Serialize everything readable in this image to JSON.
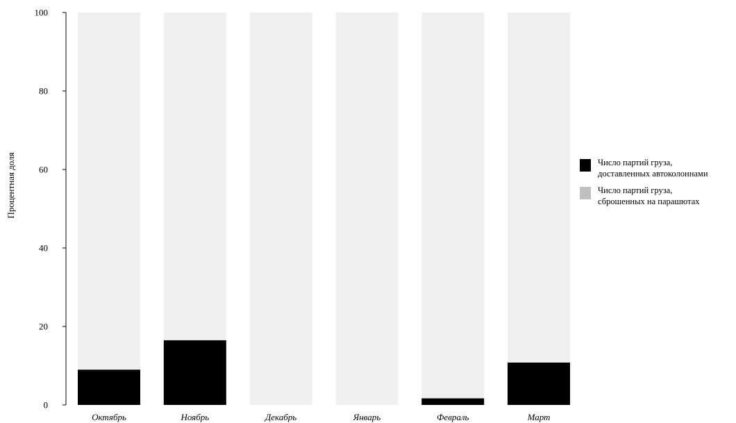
{
  "chart_data": {
    "type": "bar",
    "stacked": true,
    "title": "",
    "xlabel": "",
    "ylabel": "Процентная доля",
    "ylim": [
      0,
      100
    ],
    "yticks": [
      0,
      20,
      40,
      60,
      80,
      100
    ],
    "grid": false,
    "legend_position": "right",
    "categories": [
      "Октябрь",
      "Ноябрь",
      "Декабрь",
      "Январь",
      "Февраль",
      "Март"
    ],
    "series": [
      {
        "name": "Число партий груза,\nдоставленных автоколоннами",
        "color": "#000000",
        "values": [
          9,
          16.5,
          0,
          0,
          1.7,
          10.8
        ]
      },
      {
        "name": "Число партий груза,\nсброшенных на парашютах",
        "color": "#f0f0f0",
        "legend_color": "#c0c0c0",
        "values": [
          91,
          83.5,
          100,
          100,
          98.3,
          89.2
        ]
      }
    ]
  }
}
